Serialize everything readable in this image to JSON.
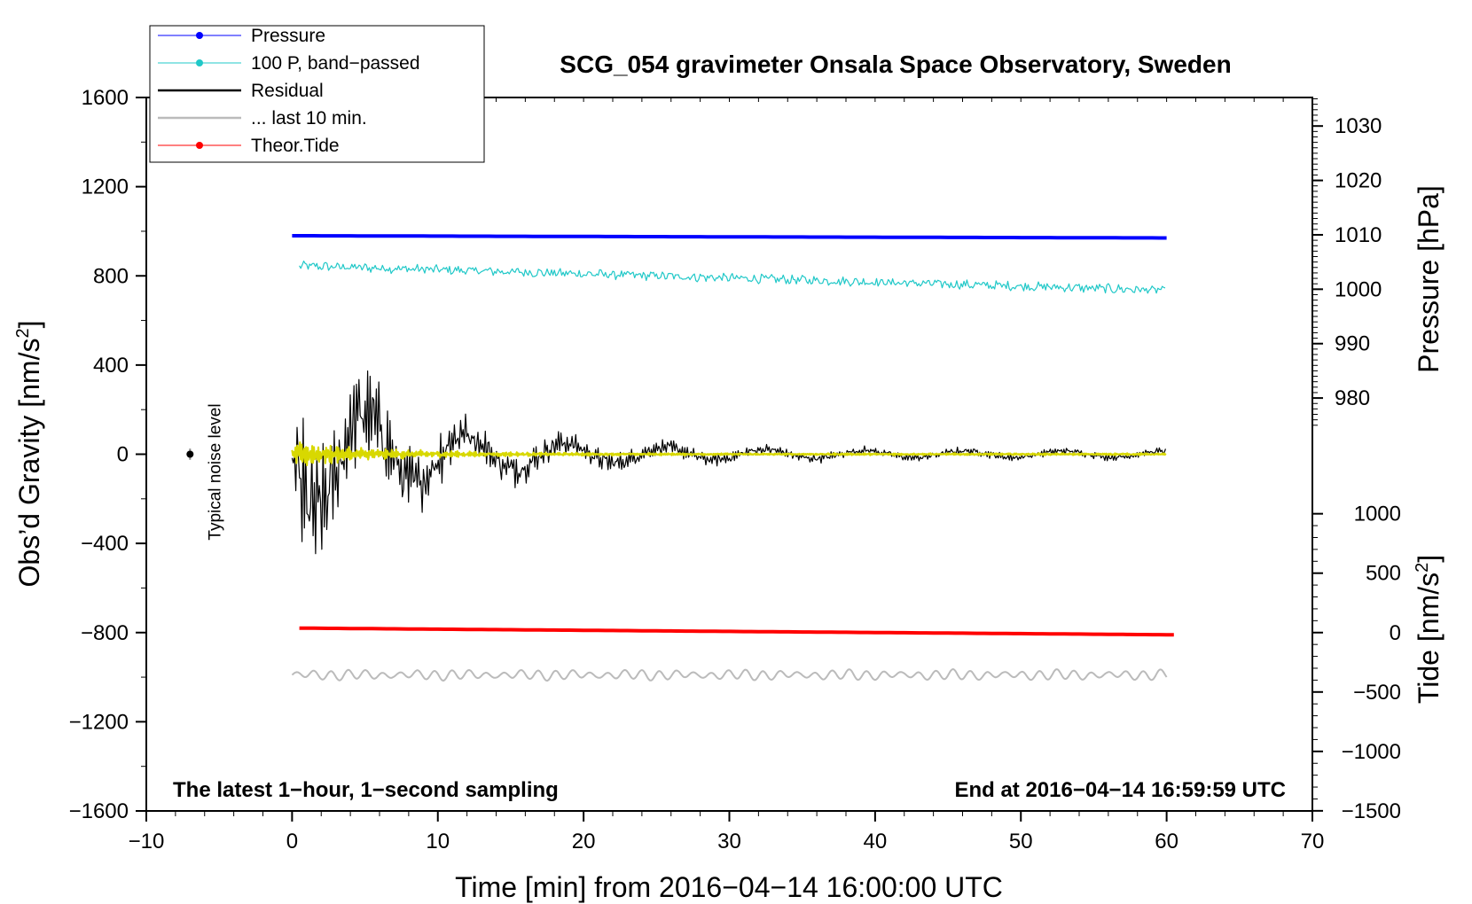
{
  "chart_data": {
    "type": "line",
    "title": "SCG_054 gravimeter Onsala Space Observatory, Sweden",
    "xlabel": "Time [min] from 2016−04−14 16:00:00 UTC",
    "ylabel_left": "Obs’d Gravity [nm/s",
    "ylabel_left_sup": "2",
    "ylabel_left_end": "]",
    "ylabel_right_top": "Pressure [hPa]",
    "ylabel_right_bottom": "Tide [nm/s",
    "ylabel_right_bottom_sup": "2",
    "ylabel_right_bottom_end": "]",
    "xlim": [
      -10,
      70
    ],
    "ylim": [
      -1600,
      1600
    ],
    "x_ticks": [
      -10,
      0,
      10,
      20,
      30,
      40,
      50,
      60,
      70
    ],
    "x_tick_labels": [
      "−10",
      "0",
      "10",
      "20",
      "30",
      "40",
      "50",
      "60",
      "70"
    ],
    "y_ticks": [
      1600,
      1200,
      800,
      400,
      0,
      -400,
      -800,
      -1200,
      -1600
    ],
    "y_tick_labels": [
      "1600",
      "1200",
      "800",
      "400",
      "0",
      "−400",
      "−800",
      "−1200",
      "−1600"
    ],
    "pressure_axis": {
      "ticks": [
        1030,
        1020,
        1010,
        1000,
        990,
        980
      ],
      "tick_labels": [
        "1030",
        "1020",
        "1010",
        "1000",
        "990",
        "980"
      ],
      "ref_value": 1000,
      "ref_gravity": 740,
      "scale_gravity_per_hpa": 24.4
    },
    "tide_axis": {
      "ticks": [
        1000,
        500,
        0,
        -500,
        -1000,
        -1500
      ],
      "tick_labels": [
        "1000",
        "500",
        "0",
        "−500",
        "−1000",
        "−1500"
      ],
      "ref_gravity_at_zero": -800,
      "scale_gravity_per_unit": 0.533
    },
    "legend": {
      "position": "top-left",
      "entries": [
        {
          "label": "Pressure",
          "color": "#0000ff",
          "marker": "dot"
        },
        {
          "label": "100 P, band−passed",
          "color": "#20c8c8",
          "marker": "dot"
        },
        {
          "label": "Residual",
          "color": "#000000",
          "marker": "none"
        },
        {
          "label": "... last 10 min.",
          "color": "#bbbbbb",
          "marker": "none"
        },
        {
          "label": "Theor.Tide",
          "color": "#ff0000",
          "marker": "dot"
        }
      ]
    },
    "series": [
      {
        "name": "Pressure",
        "color": "#0000ff",
        "x_range": [
          0,
          60
        ],
        "y_start": 980,
        "y_end": 970
      },
      {
        "name": "100 P, band−passed",
        "color": "#20c8c8",
        "x_range": [
          0.5,
          60
        ],
        "y_start": 845,
        "y_end": 735,
        "noise_amplitude": 18
      },
      {
        "name": "Residual",
        "color": "#000000",
        "x_range": [
          0,
          60
        ],
        "amplitude_start": 520,
        "amplitude_end": 22,
        "decay_minutes": 9
      },
      {
        "name": "Residual (smoothed)",
        "color": "#d8d800",
        "x_range": [
          0,
          60
        ],
        "amplitude_start": 110,
        "amplitude_end": 8
      },
      {
        "name": "... last 10 min.",
        "color": "#bbbbbb",
        "x_range": [
          0,
          60
        ],
        "y_center": -990,
        "amplitude": 22
      },
      {
        "name": "Theor.Tide",
        "color": "#ff0000",
        "x_range": [
          0.5,
          60.5
        ],
        "y_start": -780,
        "y_end": -810
      }
    ],
    "noise_marker": {
      "x": -7,
      "y": 0,
      "error": 25,
      "label": "Typical noise level"
    },
    "annotations": {
      "bottom_left": "The latest 1−hour, 1−second sampling",
      "bottom_right": "End at 2016−04−14 16:59:59 UTC"
    }
  },
  "colors": {
    "pressure": "#0000ff",
    "bandpassed": "#20c8c8",
    "residual": "#000000",
    "residual_smooth": "#d8d800",
    "last10": "#bbbbbb",
    "tide": "#ff0000"
  }
}
